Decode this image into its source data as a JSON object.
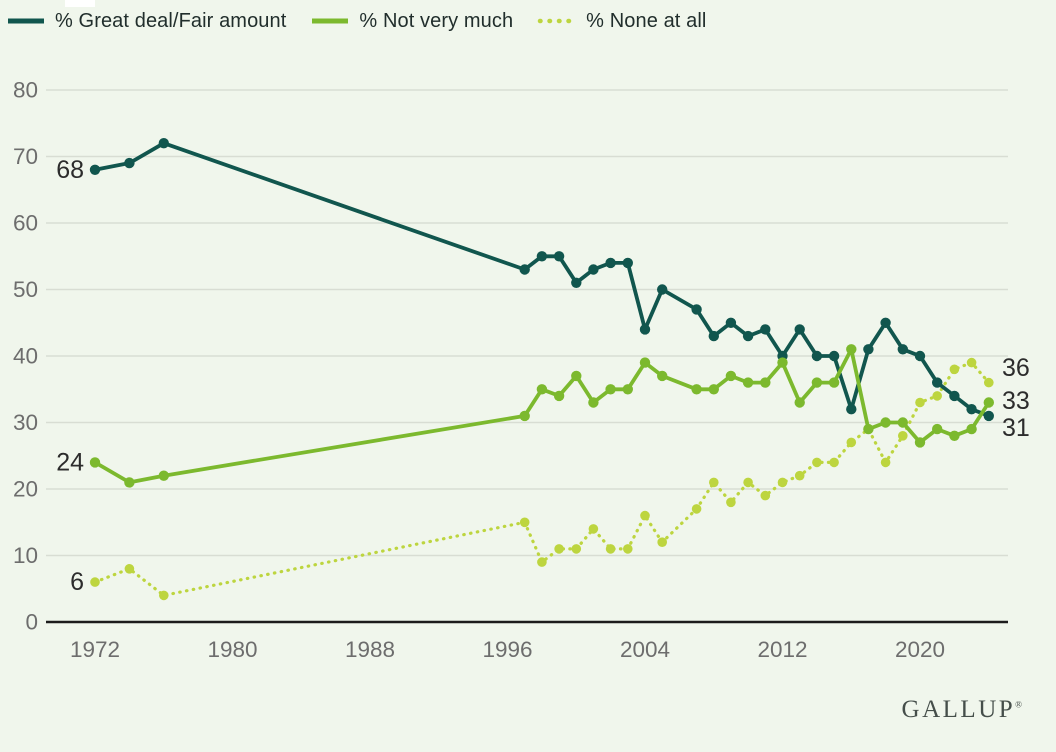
{
  "colors": {
    "background": "#f0f6ec",
    "gridline": "#d8ddd3",
    "axis_line": "#1c1c1c",
    "tick_text": "#6d6d6d",
    "value_label_text": "#2c2c2c",
    "legend_text": "#212e2c",
    "logo_text": "#454e4a",
    "series_great_deal": "#11564e",
    "series_not_very_much": "#7cb92e",
    "series_none_at_all": "#bdd53f"
  },
  "legend": {
    "items": [
      {
        "label": "% Great deal/Fair amount",
        "color": "#11564e",
        "style": "solid"
      },
      {
        "label": "% Not very much",
        "color": "#7cb92e",
        "style": "solid"
      },
      {
        "label": "% None at all",
        "color": "#bdd53f",
        "style": "dotted"
      }
    ]
  },
  "branding": {
    "logo": "GALLUP",
    "registered_mark": "®"
  },
  "chart_data": {
    "type": "line",
    "x": [
      1972,
      1974,
      1976,
      1997,
      1998,
      1999,
      2000,
      2001,
      2002,
      2003,
      2004,
      2005,
      2007,
      2008,
      2009,
      2010,
      2011,
      2012,
      2013,
      2014,
      2015,
      2016,
      2017,
      2018,
      2019,
      2020,
      2021,
      2022,
      2023,
      2024
    ],
    "series": [
      {
        "name": "% None at all",
        "style": "dotted",
        "color": "#bdd53f",
        "values": [
          6,
          8,
          4,
          15,
          9,
          11,
          11,
          14,
          11,
          11,
          16,
          12,
          17,
          21,
          18,
          21,
          19,
          21,
          22,
          24,
          24,
          27,
          29,
          24,
          28,
          33,
          34,
          38,
          39,
          36
        ],
        "start_label": "6",
        "end_label": "36"
      },
      {
        "name": "% Great deal/Fair amount",
        "style": "solid",
        "color": "#11564e",
        "values": [
          68,
          69,
          72,
          53,
          55,
          55,
          51,
          53,
          54,
          54,
          44,
          50,
          47,
          43,
          45,
          43,
          44,
          40,
          44,
          40,
          40,
          32,
          41,
          45,
          41,
          40,
          36,
          34,
          32,
          31
        ],
        "start_label": "68",
        "end_label": "31"
      },
      {
        "name": "% Not very much",
        "style": "solid",
        "color": "#7cb92e",
        "values": [
          24,
          21,
          22,
          31,
          35,
          34,
          37,
          33,
          35,
          35,
          39,
          37,
          35,
          35,
          37,
          36,
          36,
          39,
          33,
          36,
          36,
          41,
          29,
          30,
          30,
          27,
          29,
          28,
          29,
          33
        ],
        "start_label": "24",
        "end_label": "33"
      }
    ],
    "x_ticks": [
      1972,
      1980,
      1988,
      1996,
      2004,
      2012,
      2020
    ],
    "y_ticks": [
      0,
      10,
      20,
      30,
      40,
      50,
      60,
      70,
      80
    ],
    "xlim": [
      1972,
      2024
    ],
    "ylim": [
      0,
      80
    ],
    "grid": true,
    "legend_position": "top-left",
    "title": ""
  }
}
